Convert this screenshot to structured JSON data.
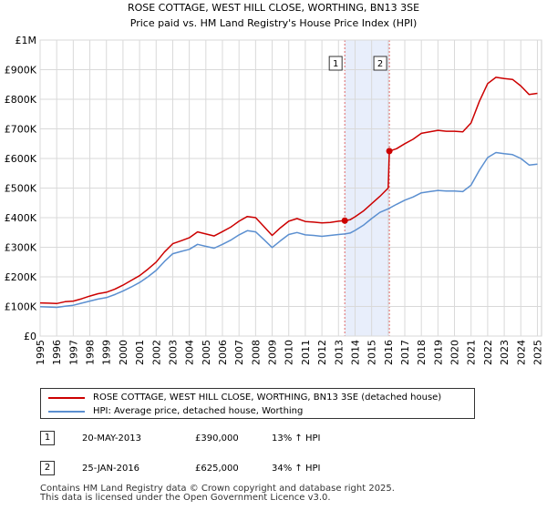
{
  "chart_data": {
    "type": "line",
    "title": "ROSE COTTAGE, WEST HILL CLOSE, WORTHING, BN13 3SE",
    "subtitle": "Price paid vs. HM Land Registry's House Price Index (HPI)",
    "xlabel": "",
    "ylabel": "",
    "xlim": [
      1995,
      2025.25
    ],
    "ylim": [
      0,
      1000000
    ],
    "x_ticks": [
      "1995",
      "1996",
      "1997",
      "1998",
      "1999",
      "2000",
      "2001",
      "2002",
      "2003",
      "2004",
      "2005",
      "2006",
      "2007",
      "2008",
      "2009",
      "2010",
      "2011",
      "2012",
      "2013",
      "2014",
      "2015",
      "2016",
      "2017",
      "2018",
      "2019",
      "2020",
      "2021",
      "2022",
      "2023",
      "2024",
      "2025"
    ],
    "y_ticks": [
      {
        "value": 0,
        "label": "£0"
      },
      {
        "value": 100000,
        "label": "£100K"
      },
      {
        "value": 200000,
        "label": "£200K"
      },
      {
        "value": 300000,
        "label": "£300K"
      },
      {
        "value": 400000,
        "label": "£400K"
      },
      {
        "value": 500000,
        "label": "£500K"
      },
      {
        "value": 600000,
        "label": "£600K"
      },
      {
        "value": 700000,
        "label": "£700K"
      },
      {
        "value": 800000,
        "label": "£800K"
      },
      {
        "value": 900000,
        "label": "£900K"
      },
      {
        "value": 1000000,
        "label": "£1M"
      }
    ],
    "grid": true,
    "shaded_period": {
      "from": 2013.38,
      "to": 2016.07
    },
    "series": [
      {
        "name": "ROSE COTTAGE, WEST HILL CLOSE, WORTHING, BN13 3SE (detached house)",
        "color": "#cc0000",
        "x": [
          1995.0,
          1995.5,
          1996.0,
          1996.5,
          1997.0,
          1997.5,
          1998.0,
          1998.5,
          1999.0,
          1999.5,
          2000.0,
          2000.5,
          2001.0,
          2001.5,
          2002.0,
          2002.5,
          2003.0,
          2003.5,
          2004.0,
          2004.5,
          2005.0,
          2005.5,
          2006.0,
          2006.5,
          2007.0,
          2007.5,
          2008.0,
          2008.5,
          2009.0,
          2009.5,
          2010.0,
          2010.5,
          2011.0,
          2011.5,
          2012.0,
          2012.5,
          2013.0,
          2013.38,
          2013.7,
          2014.0,
          2014.5,
          2015.0,
          2015.5,
          2016.0,
          2016.07,
          2016.5,
          2017.0,
          2017.5,
          2018.0,
          2018.5,
          2019.0,
          2019.5,
          2020.0,
          2020.5,
          2021.0,
          2021.5,
          2022.0,
          2022.5,
          2023.0,
          2023.5,
          2024.0,
          2024.5,
          2025.0
        ],
        "y": [
          112000,
          111000,
          110000,
          116000,
          118000,
          126000,
          135000,
          143000,
          148000,
          158000,
          172000,
          188000,
          204000,
          226000,
          250000,
          284000,
          312000,
          322000,
          332000,
          352000,
          345000,
          338000,
          353000,
          368000,
          388000,
          404000,
          400000,
          370000,
          340000,
          366000,
          388000,
          397000,
          387000,
          385000,
          382000,
          384000,
          388000,
          390000,
          393000,
          403000,
          422000,
          447000,
          472000,
          500000,
          625000,
          633000,
          650000,
          665000,
          685000,
          690000,
          695000,
          692000,
          692000,
          690000,
          720000,
          793000,
          853000,
          874000,
          870000,
          867000,
          845000,
          816000,
          820000
        ]
      },
      {
        "name": "HPI: Average price, detached house, Worthing",
        "color": "#5b8fd0",
        "x": [
          1995.0,
          1995.5,
          1996.0,
          1996.5,
          1997.0,
          1997.5,
          1998.0,
          1998.5,
          1999.0,
          1999.5,
          2000.0,
          2000.5,
          2001.0,
          2001.5,
          2002.0,
          2002.5,
          2003.0,
          2003.5,
          2004.0,
          2004.5,
          2005.0,
          2005.5,
          2006.0,
          2006.5,
          2007.0,
          2007.5,
          2008.0,
          2008.5,
          2009.0,
          2009.5,
          2010.0,
          2010.5,
          2011.0,
          2011.5,
          2012.0,
          2012.5,
          2013.0,
          2013.38,
          2013.7,
          2014.0,
          2014.5,
          2015.0,
          2015.5,
          2016.0,
          2016.5,
          2017.0,
          2017.5,
          2018.0,
          2018.5,
          2019.0,
          2019.5,
          2020.0,
          2020.5,
          2021.0,
          2021.5,
          2022.0,
          2022.5,
          2023.0,
          2023.5,
          2024.0,
          2024.5,
          2025.0
        ],
        "y": [
          99000,
          98000,
          97000,
          101000,
          104000,
          111000,
          118000,
          125000,
          130000,
          140000,
          152000,
          166000,
          181000,
          200000,
          222000,
          252000,
          278000,
          286000,
          293000,
          310000,
          303000,
          297000,
          310000,
          324000,
          342000,
          356000,
          352000,
          326000,
          299000,
          322000,
          343000,
          350000,
          342000,
          340000,
          337000,
          340000,
          343000,
          345000,
          348000,
          357000,
          374000,
          397000,
          418000,
          430000,
          445000,
          459000,
          470000,
          484000,
          488000,
          492000,
          490000,
          490000,
          488000,
          510000,
          560000,
          603000,
          620000,
          616000,
          613000,
          600000,
          578000,
          581000
        ]
      }
    ],
    "markers": [
      {
        "label": "1",
        "x": 2013.38,
        "y": 390000
      },
      {
        "label": "2",
        "x": 2016.07,
        "y": 625000
      }
    ]
  },
  "legend": {
    "items": [
      {
        "label": "ROSE COTTAGE, WEST HILL CLOSE, WORTHING, BN13 3SE (detached house)",
        "color": "#cc0000"
      },
      {
        "label": "HPI: Average price, detached house, Worthing",
        "color": "#5b8fd0"
      }
    ]
  },
  "sales": [
    {
      "num": "1",
      "date": "20-MAY-2013",
      "price": "£390,000",
      "hpi": "13% ↑ HPI"
    },
    {
      "num": "2",
      "date": "25-JAN-2016",
      "price": "£625,000",
      "hpi": "34% ↑ HPI"
    }
  ],
  "footer": {
    "line1": "Contains HM Land Registry data © Crown copyright and database right 2025.",
    "line2": "This data is licensed under the Open Government Licence v3.0."
  }
}
